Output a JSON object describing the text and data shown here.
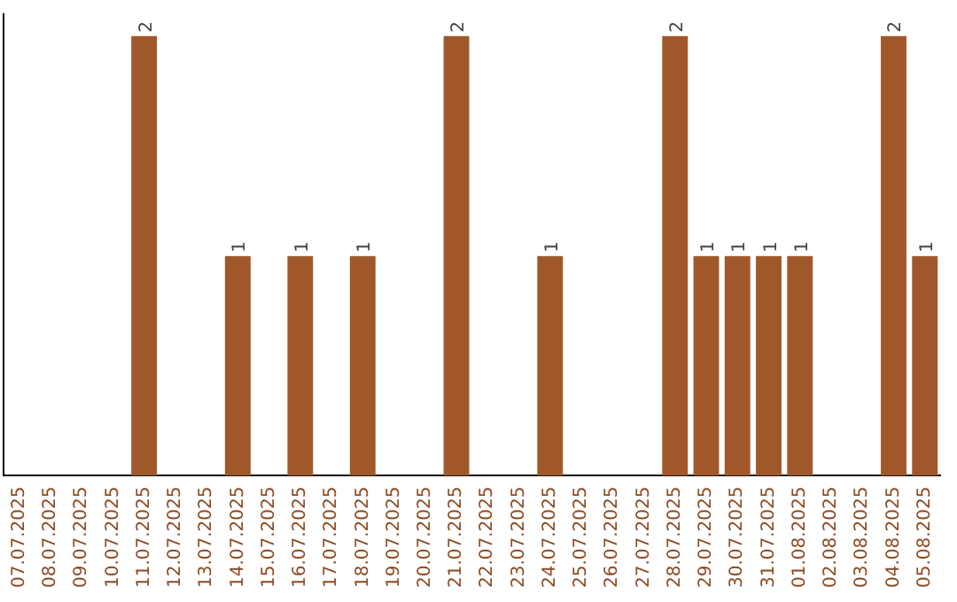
{
  "chart_data": {
    "type": "bar",
    "categories": [
      "07.07.2025",
      "08.07.2025",
      "09.07.2025",
      "10.07.2025",
      "11.07.2025",
      "12.07.2025",
      "13.07.2025",
      "14.07.2025",
      "15.07.2025",
      "16.07.2025",
      "17.07.2025",
      "18.07.2025",
      "19.07.2025",
      "20.07.2025",
      "21.07.2025",
      "22.07.2025",
      "23.07.2025",
      "24.07.2025",
      "25.07.2025",
      "26.07.2025",
      "27.07.2025",
      "28.07.2025",
      "29.07.2025",
      "30.07.2025",
      "31.07.2025",
      "01.08.2025",
      "02.08.2025",
      "03.08.2025",
      "04.08.2025",
      "05.08.2025"
    ],
    "values": [
      0,
      0,
      0,
      0,
      2,
      0,
      0,
      1,
      0,
      1,
      0,
      1,
      0,
      0,
      2,
      0,
      0,
      1,
      0,
      0,
      0,
      2,
      1,
      1,
      1,
      1,
      0,
      0,
      2,
      1
    ],
    "value_labels": [
      null,
      null,
      null,
      null,
      "2",
      null,
      null,
      "1",
      null,
      "1",
      null,
      "1",
      null,
      null,
      "2",
      null,
      null,
      "1",
      null,
      null,
      null,
      "2",
      "1",
      "1",
      "1",
      "1",
      null,
      null,
      "2",
      "1"
    ],
    "color": "#a0582a",
    "ylim": [
      0,
      2.1
    ],
    "tick_labels": "x",
    "grid": false,
    "legend": false
  }
}
